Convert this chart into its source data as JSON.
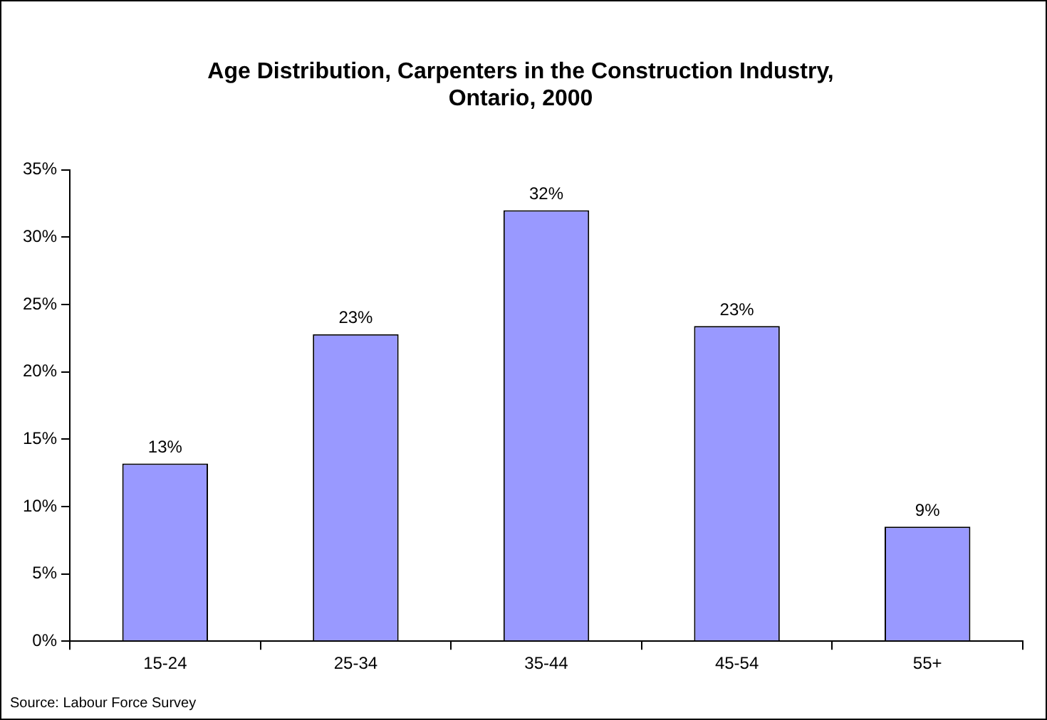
{
  "chart_data": {
    "type": "bar",
    "title": "Age Distribution, Carpenters in the Construction Industry, Ontario, 2000",
    "categories": [
      "15-24",
      "25-34",
      "35-44",
      "45-54",
      "55+"
    ],
    "values": [
      13.2,
      22.8,
      32,
      23.4,
      8.5
    ],
    "value_labels": [
      "13%",
      "23%",
      "32%",
      "23%",
      "9%"
    ],
    "color": "#9999ff",
    "ylim": [
      0,
      35
    ],
    "yticks": [
      {
        "value": 0,
        "label": "0%"
      },
      {
        "value": 5,
        "label": "5%"
      },
      {
        "value": 10,
        "label": "10%"
      },
      {
        "value": 15,
        "label": "15%"
      },
      {
        "value": 20,
        "label": "20%"
      },
      {
        "value": 25,
        "label": "25%"
      },
      {
        "value": 30,
        "label": "30%"
      },
      {
        "value": 35,
        "label": "35%"
      }
    ],
    "grid": false,
    "legend": false,
    "annotations": [
      "Source: Labour Force Survey"
    ]
  }
}
